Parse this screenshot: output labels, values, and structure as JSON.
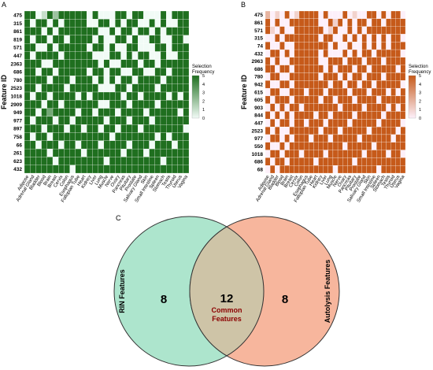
{
  "chart_data": [
    {
      "type": "heatmap",
      "panel_label": "A",
      "ylabel": "Feature ID",
      "legend_title": [
        "Selection",
        "Frequency"
      ],
      "legend_ticks": [
        "5",
        "4",
        "3",
        "2",
        "1",
        "0"
      ],
      "color_low": "#f1fbf6",
      "color_high": "#1f6f1f",
      "value_range": [
        0,
        5
      ],
      "rows": [
        "475",
        "315",
        "861",
        "819",
        "571",
        "447",
        "2363",
        "686",
        "780",
        "2523",
        "1018",
        "2909",
        "949",
        "977",
        "897",
        "758",
        "66",
        "261",
        "623",
        "432"
      ],
      "columns": [
        "Adipose",
        "Adrenal Gland",
        "Bladder",
        "Blood",
        "Brain",
        "Breast",
        "Cervix",
        "Colon",
        "Esophagus",
        "Fallopian Tube",
        "Heart",
        "Kidney",
        "Liver",
        "Lung",
        "Muscle",
        "Nerve",
        "Ovary",
        "Pancreas",
        "Pituitary",
        "Prostate",
        "Salivary Gland",
        "Skin",
        "Small Intestine",
        "Spleen",
        "Stomach",
        "Testis",
        "Thyroid",
        "Uterus",
        "Vagina"
      ],
      "values": [
        [
          5,
          5,
          0,
          1,
          5,
          2,
          5,
          5,
          5,
          5,
          5,
          0,
          5,
          0,
          0,
          0,
          5,
          5,
          0,
          5,
          5,
          0,
          0,
          0,
          5,
          0,
          5,
          5,
          5
        ],
        [
          5,
          0,
          5,
          5,
          0,
          5,
          0,
          5,
          5,
          5,
          5,
          0,
          0,
          5,
          5,
          0,
          5,
          0,
          5,
          5,
          0,
          0,
          5,
          0,
          5,
          0,
          0,
          5,
          5
        ],
        [
          5,
          5,
          5,
          0,
          5,
          0,
          5,
          5,
          5,
          5,
          5,
          5,
          5,
          0,
          0,
          5,
          0,
          5,
          5,
          0,
          5,
          5,
          0,
          5,
          0,
          5,
          5,
          5,
          5
        ],
        [
          5,
          0,
          5,
          5,
          0,
          5,
          5,
          0,
          5,
          5,
          5,
          5,
          0,
          5,
          0,
          0,
          5,
          5,
          0,
          5,
          0,
          0,
          5,
          5,
          0,
          0,
          5,
          5,
          0
        ],
        [
          5,
          5,
          0,
          0,
          5,
          0,
          5,
          5,
          5,
          5,
          5,
          0,
          5,
          5,
          0,
          5,
          0,
          0,
          5,
          5,
          0,
          0,
          0,
          5,
          5,
          0,
          5,
          5,
          5
        ],
        [
          5,
          0,
          5,
          5,
          5,
          5,
          0,
          5,
          5,
          5,
          5,
          5,
          0,
          0,
          0,
          5,
          5,
          0,
          5,
          0,
          5,
          5,
          0,
          0,
          5,
          0,
          0,
          5,
          5
        ],
        [
          5,
          5,
          5,
          0,
          0,
          5,
          5,
          5,
          5,
          5,
          5,
          5,
          5,
          0,
          5,
          0,
          0,
          5,
          5,
          5,
          0,
          5,
          5,
          0,
          5,
          5,
          5,
          5,
          5
        ],
        [
          5,
          5,
          0,
          5,
          5,
          0,
          5,
          5,
          5,
          5,
          5,
          0,
          5,
          5,
          0,
          5,
          5,
          0,
          0,
          5,
          5,
          0,
          0,
          5,
          5,
          0,
          5,
          5,
          5
        ],
        [
          5,
          5,
          5,
          5,
          0,
          5,
          5,
          5,
          0,
          5,
          5,
          5,
          0,
          5,
          0,
          5,
          0,
          5,
          5,
          0,
          5,
          5,
          5,
          5,
          0,
          5,
          5,
          5,
          5
        ],
        [
          5,
          5,
          0,
          5,
          5,
          5,
          5,
          0,
          5,
          5,
          5,
          5,
          5,
          0,
          0,
          0,
          5,
          5,
          0,
          5,
          5,
          5,
          5,
          0,
          5,
          5,
          5,
          5,
          5
        ],
        [
          5,
          0,
          5,
          5,
          0,
          5,
          5,
          5,
          5,
          0,
          5,
          0,
          5,
          5,
          5,
          5,
          5,
          0,
          5,
          5,
          0,
          5,
          5,
          5,
          5,
          0,
          5,
          0,
          5
        ],
        [
          5,
          5,
          5,
          0,
          5,
          5,
          0,
          5,
          5,
          5,
          5,
          5,
          5,
          0,
          0,
          5,
          5,
          5,
          0,
          5,
          5,
          5,
          5,
          0,
          5,
          5,
          5,
          5,
          5
        ],
        [
          5,
          5,
          0,
          5,
          3,
          5,
          5,
          5,
          5,
          0,
          5,
          5,
          0,
          5,
          5,
          5,
          0,
          5,
          5,
          5,
          5,
          0,
          5,
          5,
          5,
          5,
          5,
          0,
          5
        ],
        [
          5,
          0,
          5,
          5,
          5,
          0,
          5,
          5,
          0,
          5,
          5,
          5,
          5,
          5,
          0,
          5,
          5,
          5,
          0,
          5,
          5,
          5,
          0,
          5,
          5,
          5,
          5,
          5,
          5
        ],
        [
          5,
          5,
          5,
          0,
          5,
          5,
          5,
          0,
          5,
          5,
          0,
          5,
          5,
          0,
          5,
          5,
          0,
          5,
          5,
          5,
          0,
          5,
          5,
          5,
          5,
          5,
          5,
          5,
          0
        ],
        [
          5,
          0,
          5,
          5,
          0,
          5,
          5,
          5,
          5,
          5,
          5,
          5,
          5,
          5,
          5,
          0,
          5,
          5,
          5,
          5,
          5,
          5,
          5,
          0,
          5,
          0,
          5,
          5,
          5
        ],
        [
          5,
          5,
          0,
          5,
          5,
          5,
          0,
          5,
          5,
          0,
          5,
          5,
          5,
          0,
          5,
          5,
          5,
          5,
          0,
          5,
          5,
          5,
          0,
          5,
          5,
          5,
          0,
          5,
          5
        ],
        [
          5,
          5,
          5,
          5,
          0,
          5,
          5,
          5,
          5,
          5,
          0,
          5,
          5,
          5,
          5,
          5,
          5,
          0,
          5,
          5,
          5,
          0,
          5,
          5,
          5,
          5,
          5,
          5,
          5
        ],
        [
          5,
          5,
          5,
          5,
          5,
          0,
          5,
          5,
          5,
          5,
          5,
          5,
          5,
          5,
          0,
          5,
          5,
          5,
          5,
          5,
          5,
          5,
          5,
          5,
          0,
          5,
          5,
          5,
          5
        ],
        [
          5,
          5,
          5,
          5,
          5,
          5,
          5,
          5,
          0,
          5,
          5,
          5,
          5,
          5,
          5,
          5,
          5,
          5,
          5,
          5,
          5,
          5,
          5,
          5,
          5,
          5,
          5,
          5,
          5
        ]
      ]
    },
    {
      "type": "heatmap",
      "panel_label": "B",
      "ylabel": "Feature ID",
      "legend_title": [
        "Selection",
        "Frequency"
      ],
      "legend_ticks": [
        "5",
        "4",
        "3",
        "2",
        "1",
        "0"
      ],
      "color_low": "#fdf0fa",
      "color_high": "#c65a1a",
      "value_range": [
        0,
        5
      ],
      "rows": [
        "475",
        "861",
        "571",
        "315",
        "74",
        "432",
        "2963",
        "686",
        "780",
        "942",
        "615",
        "605",
        "903",
        "844",
        "447",
        "2523",
        "977",
        "550",
        "1018",
        "686",
        "68"
      ],
      "columns": [
        "Adipose",
        "Adrenal Gland",
        "Bladder",
        "Blood",
        "Brain",
        "Breast",
        "Cervix",
        "Colon",
        "Esophagus",
        "Fallopian Tube",
        "Heart",
        "Kidney",
        "Liver",
        "Lung",
        "Muscle",
        "Nerve",
        "Ovary",
        "Pancreas",
        "Pituitary",
        "Prostate",
        "Salivary Gland",
        "Skin",
        "Small Intestine",
        "Spleen",
        "Stomach",
        "Testis",
        "Thyroid",
        "Uterus",
        "Vagina"
      ],
      "values": [
        [
          2,
          0,
          1,
          0,
          5,
          0,
          1,
          5,
          5,
          5,
          5,
          0,
          5,
          0,
          0,
          0,
          5,
          0,
          1,
          0,
          0,
          5,
          5,
          0,
          5,
          0,
          5,
          5,
          0
        ],
        [
          5,
          0,
          5,
          0,
          0,
          5,
          5,
          5,
          5,
          5,
          5,
          0,
          0,
          5,
          1,
          5,
          0,
          5,
          0,
          5,
          5,
          0,
          5,
          5,
          0,
          5,
          5,
          5,
          5
        ],
        [
          5,
          1,
          0,
          5,
          0,
          0,
          5,
          5,
          5,
          5,
          5,
          5,
          0,
          1,
          5,
          0,
          0,
          5,
          0,
          5,
          0,
          5,
          5,
          5,
          5,
          5,
          5,
          5,
          5
        ],
        [
          0,
          0,
          5,
          0,
          5,
          5,
          5,
          5,
          5,
          5,
          5,
          0,
          5,
          5,
          0,
          0,
          5,
          0,
          5,
          0,
          5,
          0,
          5,
          0,
          5,
          0,
          5,
          5,
          0
        ],
        [
          5,
          0,
          0,
          5,
          0,
          0,
          5,
          5,
          5,
          5,
          5,
          5,
          5,
          0,
          5,
          0,
          0,
          5,
          0,
          0,
          5,
          0,
          5,
          0,
          5,
          0,
          5,
          5,
          5
        ],
        [
          0,
          5,
          5,
          0,
          5,
          0,
          5,
          5,
          5,
          5,
          5,
          0,
          5,
          0,
          0,
          0,
          5,
          0,
          5,
          0,
          5,
          5,
          0,
          5,
          5,
          5,
          5,
          5,
          0
        ],
        [
          5,
          0,
          5,
          0,
          0,
          5,
          5,
          5,
          5,
          5,
          5,
          0,
          0,
          5,
          5,
          5,
          0,
          5,
          5,
          5,
          0,
          5,
          5,
          5,
          0,
          5,
          5,
          5,
          5
        ],
        [
          5,
          5,
          0,
          5,
          5,
          0,
          5,
          5,
          5,
          5,
          5,
          5,
          0,
          5,
          0,
          5,
          5,
          5,
          0,
          5,
          5,
          0,
          5,
          5,
          5,
          5,
          5,
          0,
          5
        ],
        [
          0,
          5,
          5,
          0,
          0,
          5,
          5,
          5,
          5,
          5,
          5,
          0,
          5,
          5,
          5,
          0,
          5,
          0,
          5,
          5,
          0,
          5,
          5,
          5,
          0,
          5,
          5,
          5,
          5
        ],
        [
          5,
          0,
          0,
          5,
          5,
          0,
          5,
          5,
          5,
          5,
          5,
          5,
          5,
          0,
          5,
          5,
          0,
          5,
          5,
          0,
          5,
          5,
          0,
          5,
          5,
          5,
          5,
          5,
          0
        ],
        [
          0,
          5,
          5,
          0,
          0,
          5,
          5,
          5,
          0,
          5,
          5,
          5,
          0,
          5,
          5,
          5,
          5,
          0,
          5,
          5,
          5,
          0,
          5,
          5,
          5,
          0,
          5,
          0,
          5
        ],
        [
          5,
          0,
          5,
          5,
          5,
          0,
          5,
          5,
          5,
          5,
          5,
          0,
          5,
          5,
          0,
          5,
          5,
          5,
          0,
          5,
          5,
          5,
          5,
          0,
          5,
          5,
          5,
          5,
          5
        ],
        [
          0,
          5,
          0,
          5,
          0,
          5,
          5,
          0,
          5,
          5,
          5,
          5,
          5,
          5,
          5,
          0,
          5,
          5,
          5,
          5,
          0,
          5,
          5,
          5,
          5,
          0,
          5,
          0,
          5
        ],
        [
          5,
          0,
          5,
          0,
          5,
          0,
          5,
          5,
          5,
          5,
          0,
          5,
          5,
          0,
          5,
          5,
          5,
          5,
          0,
          5,
          5,
          5,
          5,
          5,
          0,
          5,
          5,
          5,
          5
        ],
        [
          0,
          5,
          0,
          5,
          5,
          0,
          5,
          5,
          0,
          5,
          5,
          5,
          0,
          5,
          5,
          5,
          5,
          0,
          5,
          5,
          5,
          5,
          5,
          0,
          5,
          5,
          5,
          5,
          0
        ],
        [
          5,
          0,
          5,
          0,
          0,
          5,
          5,
          5,
          5,
          5,
          5,
          0,
          5,
          5,
          5,
          0,
          5,
          5,
          5,
          5,
          5,
          0,
          5,
          5,
          5,
          5,
          5,
          0,
          5
        ],
        [
          0,
          5,
          5,
          0,
          5,
          0,
          5,
          5,
          5,
          0,
          5,
          5,
          5,
          0,
          5,
          5,
          5,
          5,
          5,
          0,
          5,
          5,
          5,
          5,
          5,
          5,
          0,
          5,
          5
        ],
        [
          5,
          0,
          0,
          5,
          0,
          5,
          5,
          5,
          5,
          5,
          5,
          5,
          5,
          5,
          5,
          5,
          0,
          5,
          5,
          5,
          5,
          5,
          0,
          5,
          5,
          5,
          5,
          5,
          5
        ],
        [
          0,
          5,
          5,
          0,
          5,
          5,
          5,
          0,
          5,
          5,
          5,
          5,
          0,
          5,
          5,
          5,
          5,
          5,
          5,
          5,
          0,
          5,
          5,
          5,
          5,
          0,
          5,
          5,
          0
        ],
        [
          5,
          0,
          5,
          5,
          0,
          5,
          5,
          5,
          5,
          5,
          0,
          5,
          5,
          5,
          5,
          5,
          5,
          5,
          0,
          5,
          5,
          5,
          5,
          5,
          5,
          5,
          5,
          5,
          5
        ],
        [
          0,
          5,
          0,
          5,
          5,
          5,
          5,
          5,
          5,
          5,
          5,
          5,
          5,
          5,
          0,
          5,
          5,
          5,
          5,
          5,
          5,
          5,
          5,
          0,
          5,
          5,
          5,
          5,
          5
        ]
      ]
    },
    {
      "type": "venn",
      "panel_label": "C",
      "sets": [
        {
          "name": "RIN Features",
          "only_count": "8",
          "color": "#9fe0c4"
        },
        {
          "name": "Autolysis Features",
          "only_count": "8",
          "color": "#f6a98c"
        }
      ],
      "intersection": {
        "count": "12",
        "label_lines": [
          "Common",
          "Features"
        ],
        "label_color": "#8b0000"
      }
    }
  ]
}
